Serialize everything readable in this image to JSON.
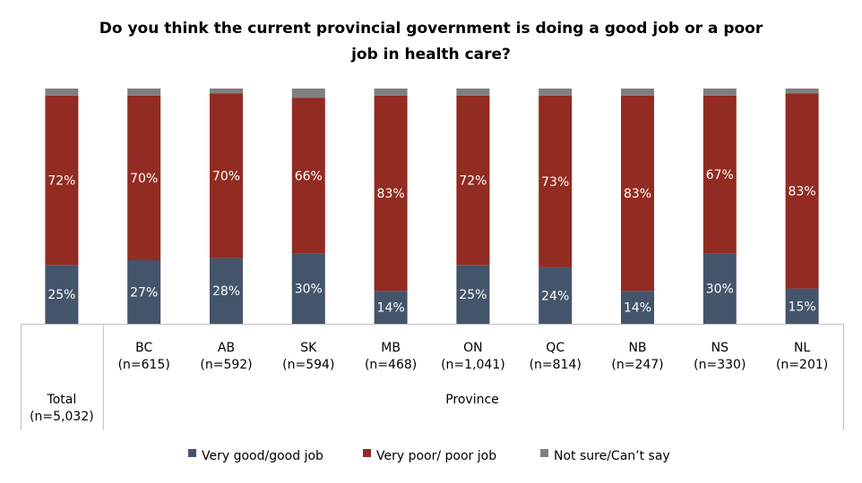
{
  "chart_data": {
    "type": "bar",
    "stacked": true,
    "title_lines": [
      "Do you think the current provincial government is doing a good job or a poor",
      "job in health care?"
    ],
    "categories": [
      {
        "name": "Total",
        "n": "(n=5,032)"
      },
      {
        "name": "BC",
        "n": "(n=615)"
      },
      {
        "name": "AB",
        "n": "(n=592)"
      },
      {
        "name": "SK",
        "n": "(n=594)"
      },
      {
        "name": "MB",
        "n": "(n=468)"
      },
      {
        "name": "ON",
        "n": "(n=1,041)"
      },
      {
        "name": "QC",
        "n": "(n=814)"
      },
      {
        "name": "NB",
        "n": "(n=247)"
      },
      {
        "name": "NS",
        "n": "(n=330)"
      },
      {
        "name": "NL",
        "n": "(n=201)"
      }
    ],
    "group_label": "Province",
    "series": [
      {
        "name": "Very good/good job",
        "color": "#44546a",
        "values": [
          25,
          27,
          28,
          30,
          14,
          25,
          24,
          14,
          30,
          15
        ],
        "labels": [
          "25%",
          "27%",
          "28%",
          "30%",
          "14%",
          "25%",
          "24%",
          "14%",
          "30%",
          "15%"
        ]
      },
      {
        "name": "Very poor/ poor job",
        "color": "#922b21",
        "values": [
          72,
          70,
          70,
          66,
          83,
          72,
          73,
          83,
          67,
          83
        ],
        "labels": [
          "72%",
          "70%",
          "70%",
          "66%",
          "83%",
          "72%",
          "73%",
          "83%",
          "67%",
          "83%"
        ]
      },
      {
        "name": "Not sure/Can’t say",
        "color": "#7f7f7f",
        "values": [
          3,
          3,
          2,
          4,
          3,
          3,
          3,
          3,
          3,
          2
        ],
        "labels": null
      }
    ],
    "ylim": [
      0,
      100
    ]
  }
}
